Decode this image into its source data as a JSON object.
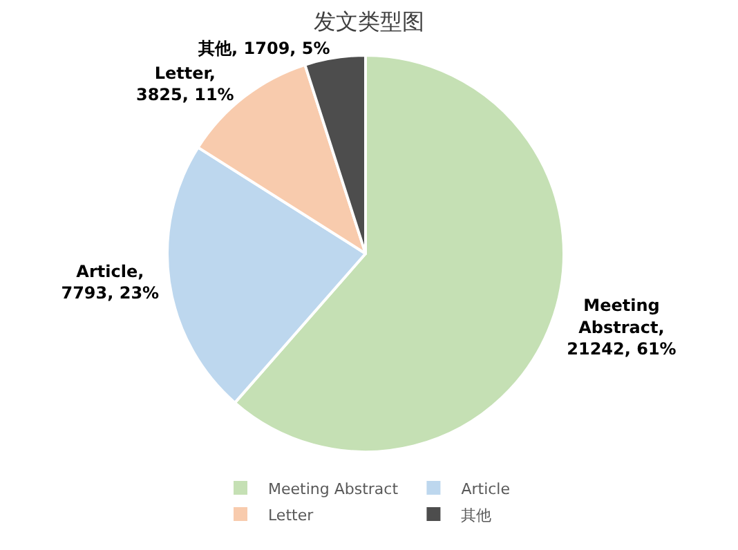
{
  "chart_data": {
    "type": "pie",
    "title": "发文类型图",
    "categories": [
      "Meeting Abstract",
      "Article",
      "Letter",
      "其他"
    ],
    "values": [
      21242,
      7793,
      3825,
      1709
    ],
    "value_labels": [
      "Meeting Abstract, 21242, 61%",
      "Article, 7793, 23%",
      "Letter, 3825, 11%",
      "其他, 1709, 5%"
    ],
    "colors": [
      "#c5e0b4",
      "#bdd7ee",
      "#f8cbad",
      "#4d4d4d"
    ],
    "legend": "bottom"
  }
}
